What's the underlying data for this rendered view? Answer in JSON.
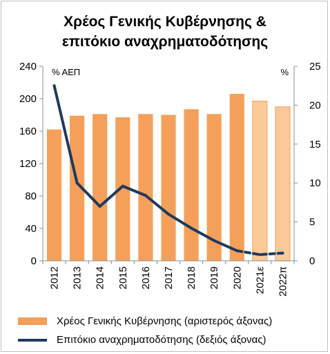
{
  "chart_data": {
    "type": "bar",
    "title_line1": "Χρέος Γενικής Κυβέρνησης &",
    "title_line2": "επιτόκιο αναχρηματοδότησης",
    "left_unit": "% ΑΕΠ",
    "right_unit": "%",
    "categories": [
      "2012",
      "2013",
      "2014",
      "2015",
      "2016",
      "2017",
      "2018",
      "2019",
      "2020",
      "2021ε",
      "2022π"
    ],
    "left_axis": {
      "ylim": [
        0,
        240
      ],
      "ticks": [
        0,
        40,
        80,
        120,
        160,
        200,
        240
      ]
    },
    "right_axis": {
      "ylim": [
        0,
        25
      ],
      "ticks": [
        0,
        5,
        10,
        15,
        20,
        25
      ]
    },
    "series": [
      {
        "name": "Χρέος Γενικής Κυβέρνησης (αριστερός άξονας)",
        "kind": "bar",
        "axis": "left",
        "values": [
          162,
          179,
          181,
          177,
          181,
          180,
          187,
          181,
          206,
          197,
          190
        ],
        "forecast_from_index": 9
      },
      {
        "name": "Επιτόκιο αναχρηματοδότησης (δεξιός άξονας)",
        "kind": "line",
        "axis": "right",
        "values": [
          22.5,
          10.0,
          7.0,
          9.6,
          8.4,
          6.0,
          4.2,
          2.6,
          1.3,
          0.8,
          1.0
        ],
        "dashed_from_index": 8
      }
    ],
    "grid": false,
    "legend_position": "bottom"
  },
  "colors": {
    "bar": "#f4a05a",
    "bar_forecast": "#fbc898",
    "bar_forecast_edge": "#f4a05a",
    "line": "#1f3a5f",
    "axis": "#8c8c8c"
  }
}
